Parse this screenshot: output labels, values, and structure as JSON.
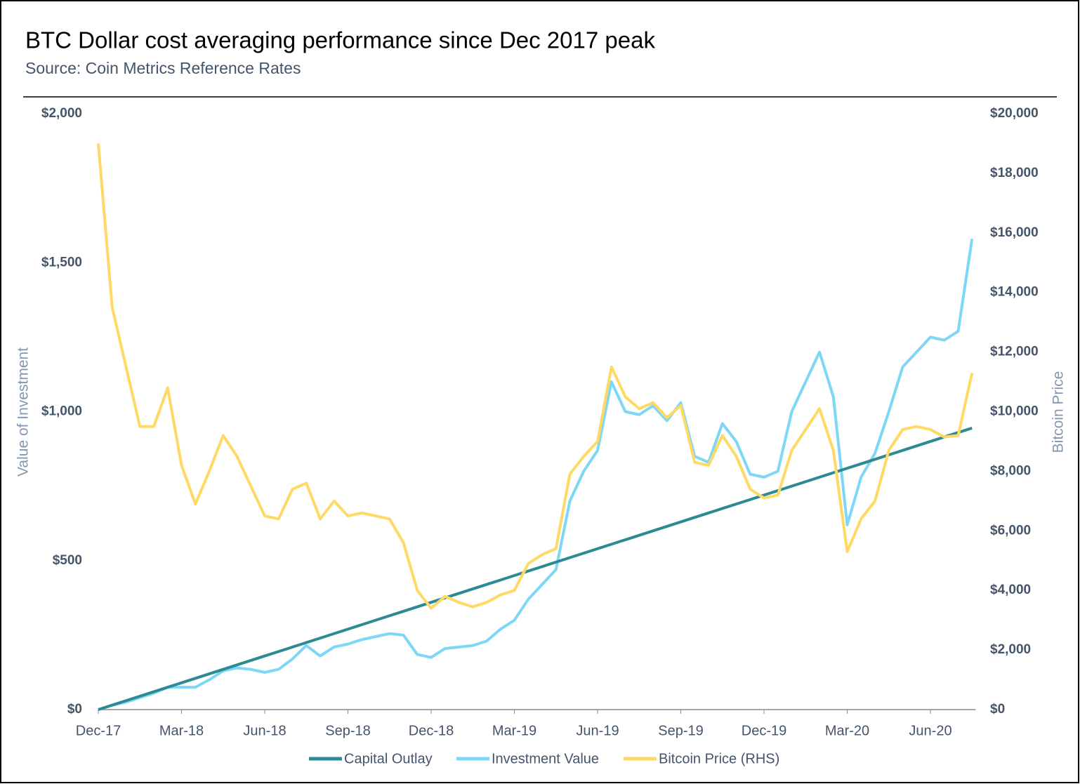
{
  "chart_data": {
    "type": "line",
    "title": "BTC Dollar cost averaging performance since Dec 2017 peak",
    "subtitle": "Source: Coin Metrics Reference Rates",
    "y_label": "Value of Investment",
    "y2_label": "Bitcoin Price",
    "categories": [
      "Dec-17",
      null,
      null,
      null,
      null,
      null,
      "Mar-18",
      null,
      null,
      null,
      null,
      null,
      "Jun-18",
      null,
      null,
      null,
      null,
      null,
      "Sep-18",
      null,
      null,
      null,
      null,
      null,
      "Dec-18",
      null,
      null,
      null,
      null,
      null,
      "Mar-19",
      null,
      null,
      null,
      null,
      null,
      "Jun-19",
      null,
      null,
      null,
      null,
      null,
      "Sep-19",
      null,
      null,
      null,
      null,
      null,
      "Dec-19",
      null,
      null,
      null,
      null,
      null,
      "Mar-20",
      null,
      null,
      null,
      null,
      null,
      "Jun-20",
      null,
      null,
      null
    ],
    "series": [
      {
        "name": "Capital Outlay",
        "color": "#2e8a92",
        "values": [
          0,
          15,
          30,
          45,
          60,
          75,
          90,
          105,
          120,
          135,
          150,
          165,
          180,
          195,
          210,
          225,
          240,
          255,
          270,
          285,
          300,
          315,
          330,
          345,
          360,
          375,
          390,
          405,
          420,
          435,
          450,
          465,
          480,
          495,
          510,
          525,
          540,
          555,
          570,
          585,
          600,
          615,
          630,
          645,
          660,
          675,
          690,
          705,
          720,
          735,
          750,
          765,
          780,
          795,
          810,
          825,
          840,
          855,
          870,
          885,
          900,
          915,
          930,
          945
        ]
      },
      {
        "name": "Investment Value",
        "color": "#7fd7f7",
        "values": [
          0,
          15,
          25,
          40,
          55,
          75,
          75,
          75,
          100,
          130,
          140,
          135,
          125,
          135,
          170,
          215,
          180,
          210,
          220,
          235,
          245,
          255,
          250,
          185,
          175,
          205,
          210,
          215,
          230,
          270,
          300,
          370,
          420,
          470,
          700,
          800,
          870,
          1100,
          1000,
          990,
          1020,
          970,
          1030,
          850,
          830,
          960,
          900,
          790,
          780,
          800,
          1000,
          1100,
          1200,
          1050,
          620,
          780,
          860,
          1000,
          1150,
          1200,
          1250,
          1240,
          1270,
          1580
        ]
      },
      {
        "name": "Bitcoin Price (RHS)",
        "color": "#ffd966",
        "axis": "y2",
        "values": [
          19000,
          13500,
          11500,
          9500,
          9500,
          10800,
          8200,
          6900,
          8000,
          9200,
          8500,
          7500,
          6500,
          6400,
          7400,
          7600,
          6400,
          7000,
          6500,
          6600,
          6500,
          6400,
          5600,
          4000,
          3400,
          3800,
          3600,
          3450,
          3600,
          3850,
          4000,
          4900,
          5200,
          5400,
          7900,
          8500,
          9000,
          11500,
          10500,
          10100,
          10300,
          9800,
          10200,
          8300,
          8200,
          9200,
          8500,
          7400,
          7100,
          7200,
          8700,
          9400,
          10100,
          8700,
          5300,
          6400,
          7000,
          8700,
          9400,
          9500,
          9400,
          9150,
          9200,
          11300
        ]
      }
    ],
    "ylim": [
      0,
      2000
    ],
    "yticks": [
      {
        "value": 0,
        "label": "$0"
      },
      {
        "value": 500,
        "label": "$500"
      },
      {
        "value": 1000,
        "label": "$1,000"
      },
      {
        "value": 1500,
        "label": "$1,500"
      },
      {
        "value": 2000,
        "label": "$2,000"
      }
    ],
    "y2lim": [
      0,
      20000
    ],
    "y2ticks": [
      {
        "value": 0,
        "label": "$0"
      },
      {
        "value": 2000,
        "label": "$2,000"
      },
      {
        "value": 4000,
        "label": "$4,000"
      },
      {
        "value": 6000,
        "label": "$6,000"
      },
      {
        "value": 8000,
        "label": "$8,000"
      },
      {
        "value": 10000,
        "label": "$10,000"
      },
      {
        "value": 12000,
        "label": "$12,000"
      },
      {
        "value": 14000,
        "label": "$14,000"
      },
      {
        "value": 16000,
        "label": "$16,000"
      },
      {
        "value": 18000,
        "label": "$18,000"
      },
      {
        "value": 20000,
        "label": "$20,000"
      }
    ],
    "grid": false,
    "legend": "bottom"
  }
}
